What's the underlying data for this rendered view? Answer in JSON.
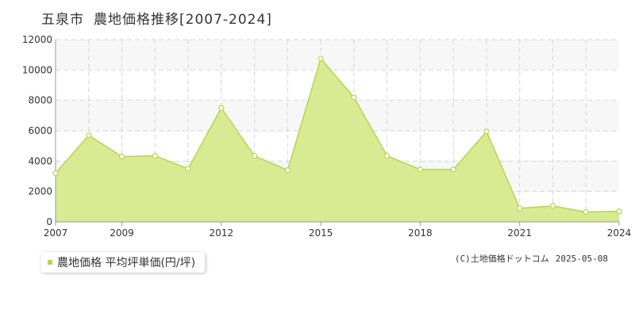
{
  "header": {
    "city": "五泉市",
    "subject": "農地価格推移[2007-2024]"
  },
  "legend": {
    "label": "農地価格 平均坪単価(円/坪)"
  },
  "footer": {
    "source": "(C)土地価格ドットコム",
    "date": "2025-05-08"
  },
  "chart_data": {
    "type": "area",
    "title": "五泉市 農地価格推移[2007-2024]",
    "xlabel": "",
    "ylabel": "",
    "xlim": [
      2007,
      2024
    ],
    "ylim": [
      0,
      12000
    ],
    "x_tick_labels": [
      "2007",
      "2009",
      "2012",
      "2015",
      "2018",
      "2021",
      "2024"
    ],
    "y_tick_labels": [
      "0",
      "2000",
      "4000",
      "6000",
      "8000",
      "10000",
      "12000"
    ],
    "grid": true,
    "legend_position": "bottom-left",
    "series": [
      {
        "name": "農地価格 平均坪単価(円/坪)",
        "color": "#b5d64a",
        "fill": "#d8eb93",
        "x": [
          2007,
          2008,
          2009,
          2010,
          2011,
          2012,
          2013,
          2014,
          2015,
          2016,
          2017,
          2018,
          2019,
          2020,
          2021,
          2022,
          2023,
          2024
        ],
        "values": [
          3200,
          5700,
          4300,
          4350,
          3500,
          7500,
          4350,
          3400,
          10750,
          8200,
          4350,
          3450,
          3450,
          5950,
          900,
          1050,
          650,
          700
        ]
      }
    ]
  }
}
